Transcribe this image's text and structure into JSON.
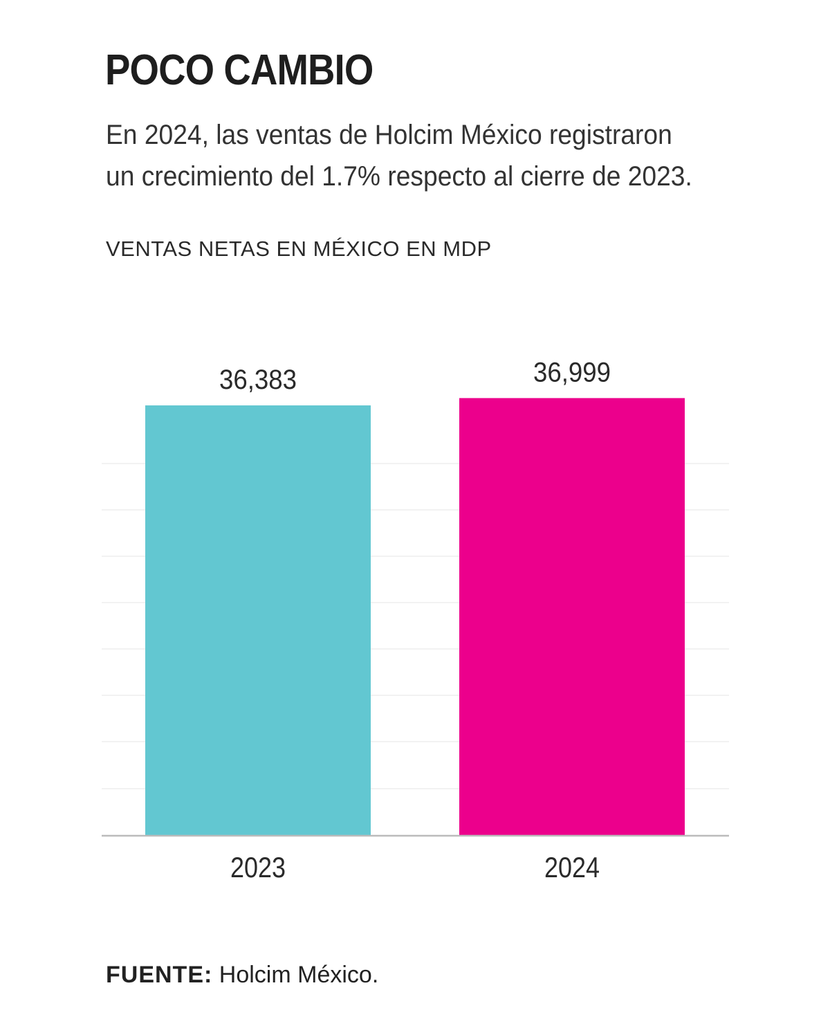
{
  "header": {
    "title": "POCO CAMBIO",
    "subtitle": "En 2024, las ventas de Holcim México registraron un crecimiento del 1.7% respecto al cierre de 2023.",
    "chart_label": "VENTAS NETAS EN MÉXICO EN MDP"
  },
  "footer": {
    "source_label": "FUENTE:",
    "source_text": "Holcim México."
  },
  "colors": {
    "bar_2023": "#62c7d1",
    "bar_2024": "#ec008c",
    "grid": "#eeeeee",
    "axis": "#bbbbbb",
    "text": "#222222"
  },
  "chart_data": {
    "type": "bar",
    "categories": [
      "2023",
      "2024"
    ],
    "values": [
      36383,
      36999
    ],
    "value_labels": [
      "36,383",
      "36,999"
    ],
    "ylim": [
      0,
      37900
    ],
    "grid": true,
    "legend": "none"
  }
}
